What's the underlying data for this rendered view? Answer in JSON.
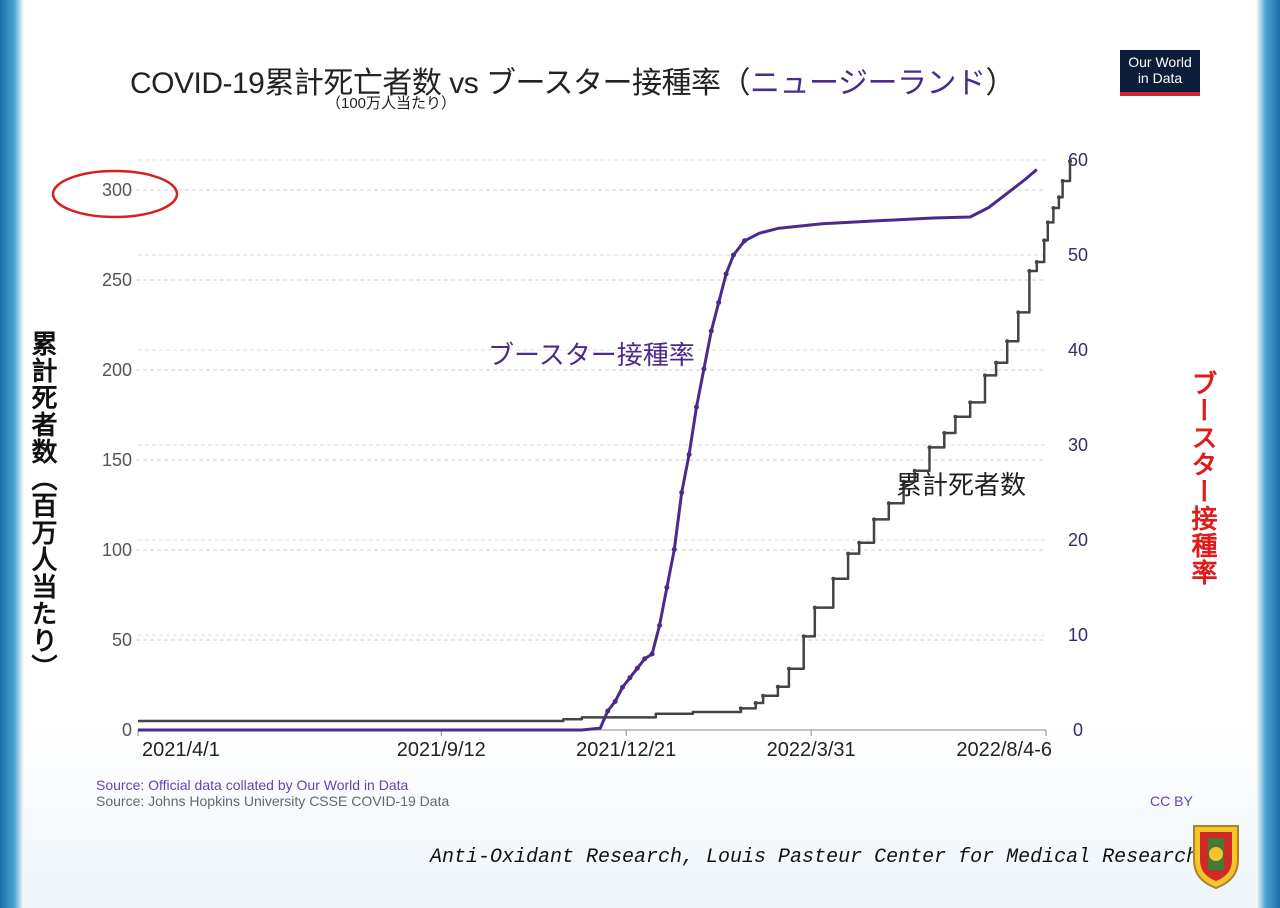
{
  "title": {
    "main": "COVID-19累計死亡者数 vs ブースター接種率（",
    "country": "ニュージーランド",
    "close": "）"
  },
  "subtitle": "（100万人当たり）",
  "logo_text": {
    "line1": "Our World",
    "line2": "in Data"
  },
  "sources": {
    "line1": "Source: Official data collated by Our World in Data",
    "line2": "Source: Johns Hopkins University CSSE COVID-19 Data"
  },
  "license": "CC BY",
  "credit": "Anti-Oxidant Research, Louis Pasteur Center for Medical Research.",
  "colors": {
    "booster": "#4b2a8c",
    "deaths": "#444444",
    "highlight": "#d61f1f",
    "right_label": "#e01b1b"
  },
  "chart_data": {
    "type": "line",
    "title": "COVID-19累計死亡者数 vs ブースター接種率（ニュージーランド）",
    "subtitle": "（100万人当たり）",
    "xlabel": "",
    "ylabel_left": "累計死者数（百万人当たり）",
    "ylabel_right": "ブースター接種率",
    "x_tick_labels": [
      "2021/4/1",
      "2021/9/12",
      "2021/12/21",
      "2022/3/31",
      "2022/8/4-6"
    ],
    "x_tick_positions": [
      0,
      164,
      264,
      364,
      491
    ],
    "x_range": [
      0,
      491
    ],
    "left_axis": {
      "ticks": [
        0,
        50,
        100,
        150,
        200,
        250,
        300
      ],
      "range": [
        0,
        300
      ],
      "highlighted_tick": 300
    },
    "right_axis": {
      "ticks": [
        0,
        10,
        20,
        30,
        40,
        50,
        60
      ],
      "range": [
        0,
        60
      ]
    },
    "series": [
      {
        "name": "ブースター接種率",
        "axis": "right",
        "label": "ブースター接種率",
        "points": [
          [
            0,
            0
          ],
          [
            240,
            0
          ],
          [
            250,
            0.2
          ],
          [
            254,
            2
          ],
          [
            258,
            3
          ],
          [
            262,
            4.5
          ],
          [
            266,
            5.5
          ],
          [
            270,
            6.5
          ],
          [
            274,
            7.5
          ],
          [
            278,
            8
          ],
          [
            282,
            11
          ],
          [
            286,
            15
          ],
          [
            290,
            19
          ],
          [
            294,
            25
          ],
          [
            298,
            29
          ],
          [
            302,
            34
          ],
          [
            306,
            38
          ],
          [
            310,
            42
          ],
          [
            314,
            45
          ],
          [
            318,
            48
          ],
          [
            322,
            50
          ],
          [
            328,
            51.5
          ],
          [
            336,
            52.3
          ],
          [
            346,
            52.8
          ],
          [
            370,
            53.3
          ],
          [
            400,
            53.6
          ],
          [
            430,
            53.9
          ],
          [
            450,
            54
          ],
          [
            460,
            55
          ],
          [
            470,
            56.5
          ],
          [
            480,
            58
          ],
          [
            486,
            59
          ]
        ]
      },
      {
        "name": "累計死者数",
        "axis": "left",
        "label": "累計死者数",
        "points": [
          [
            0,
            5
          ],
          [
            100,
            5
          ],
          [
            200,
            5
          ],
          [
            230,
            6
          ],
          [
            240,
            7
          ],
          [
            280,
            9
          ],
          [
            300,
            10
          ],
          [
            320,
            10
          ],
          [
            326,
            12
          ],
          [
            334,
            15
          ],
          [
            338,
            19
          ],
          [
            346,
            24
          ],
          [
            352,
            34
          ],
          [
            360,
            52
          ],
          [
            366,
            68
          ],
          [
            376,
            84
          ],
          [
            384,
            98
          ],
          [
            390,
            104
          ],
          [
            398,
            117
          ],
          [
            406,
            126
          ],
          [
            414,
            138
          ],
          [
            420,
            144
          ],
          [
            428,
            157
          ],
          [
            436,
            165
          ],
          [
            442,
            174
          ],
          [
            450,
            182
          ],
          [
            458,
            197
          ],
          [
            464,
            204
          ],
          [
            470,
            216
          ],
          [
            476,
            232
          ],
          [
            482,
            255
          ],
          [
            486,
            260
          ],
          [
            490,
            272
          ],
          [
            492,
            282
          ],
          [
            495,
            290
          ],
          [
            498,
            296
          ],
          [
            500,
            305
          ],
          [
            504,
            316
          ]
        ]
      }
    ],
    "grid": true,
    "legend": "inline labels"
  }
}
